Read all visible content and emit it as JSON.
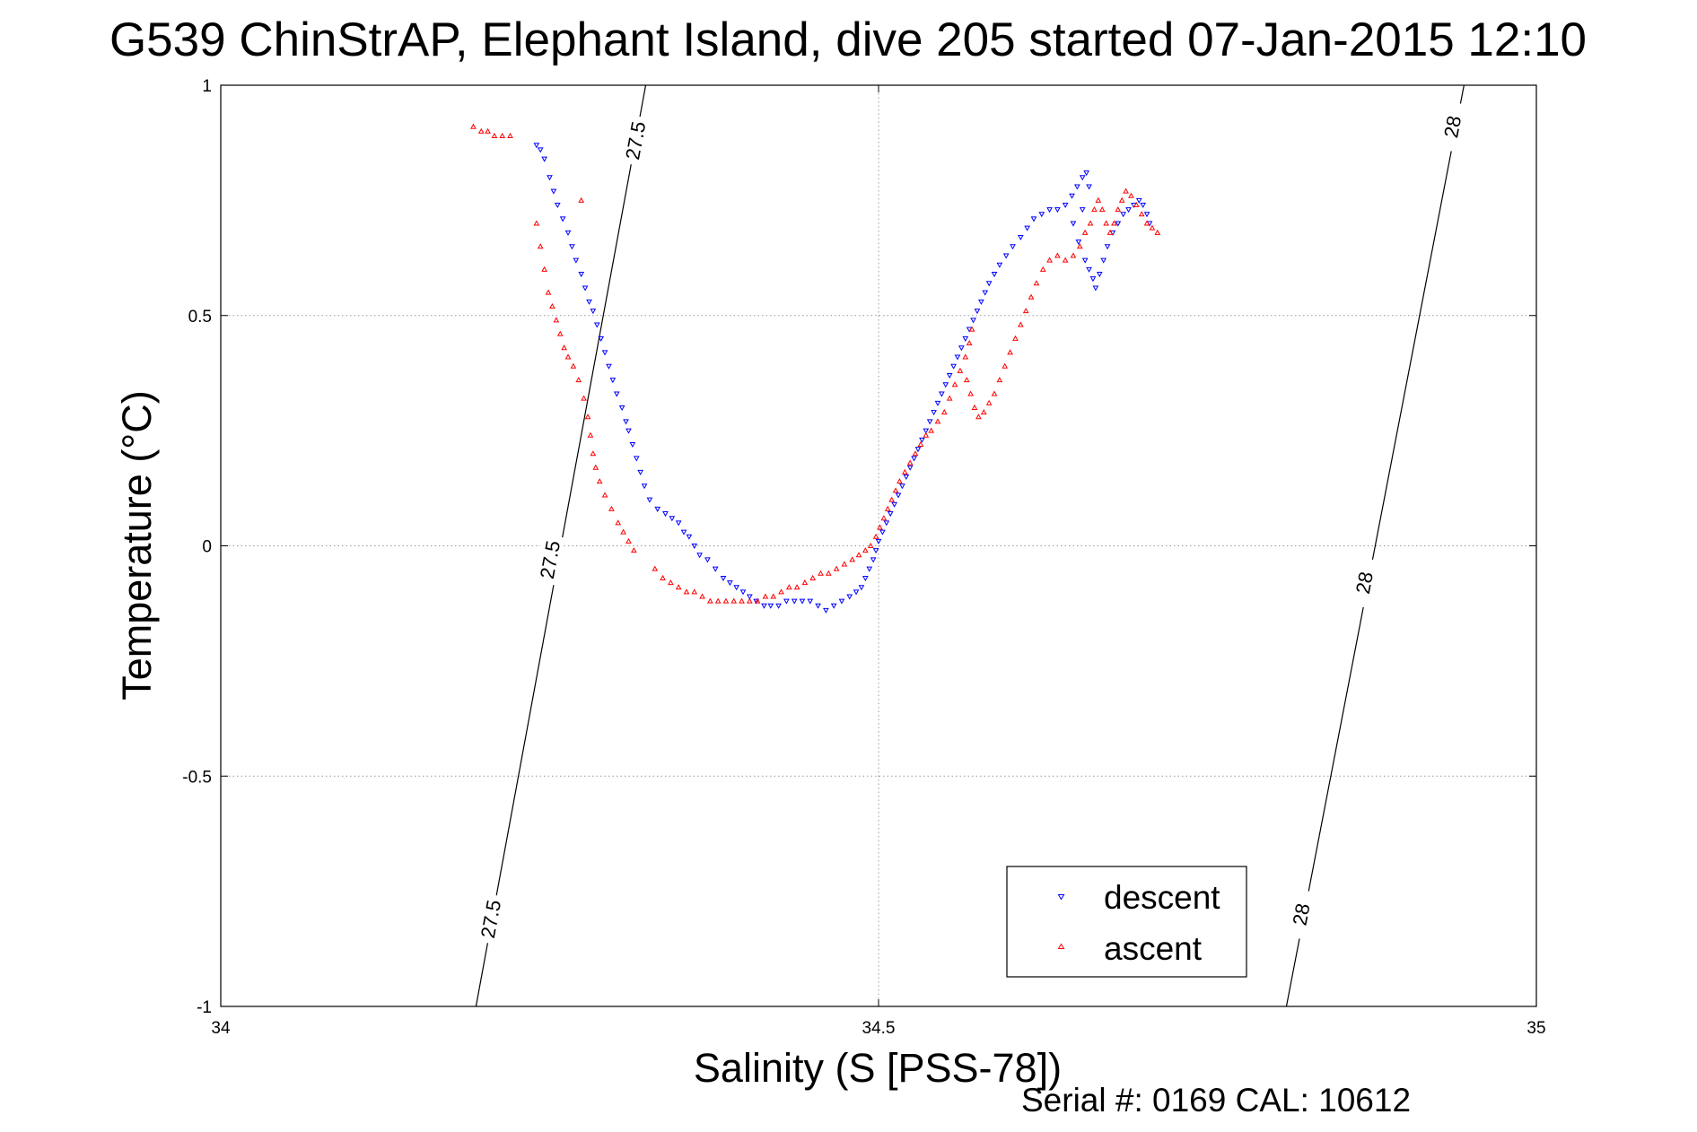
{
  "title": "G539 ChinStrAP, Elephant Island, dive 205 started 07-Jan-2015 12:10",
  "footer": "Serial #: 0169 CAL: 10612",
  "colors": {
    "descent": "#0000ff",
    "ascent": "#ff0000",
    "grid": "#999999",
    "axis": "#000000"
  },
  "chart_data": {
    "type": "scatter",
    "title": "G539 ChinStrAP, Elephant Island, dive 205 started 07-Jan-2015 12:10",
    "xlabel": "Salinity (S [PSS-78])",
    "ylabel": "Temperature (°C)",
    "xlim": [
      34,
      35
    ],
    "ylim": [
      -1,
      1
    ],
    "xticks": [
      34,
      34.5,
      35
    ],
    "xtick_labels": [
      "34",
      "34.5",
      "35"
    ],
    "yticks": [
      -1,
      -0.5,
      0,
      0.5,
      1
    ],
    "ytick_labels": [
      "-1",
      "-0.5",
      "0",
      "0.5",
      "1"
    ],
    "grid": true,
    "legend": {
      "position": "bottom-right",
      "entries": [
        "descent",
        "ascent"
      ]
    },
    "contours": [
      {
        "label": "27.5",
        "points": [
          [
            34.194,
            -1.0
          ],
          [
            34.323,
            1.0
          ]
        ],
        "label_positions": [
          [
            34.205,
            -0.81
          ],
          [
            34.25,
            -0.03
          ],
          [
            34.315,
            0.88
          ]
        ]
      },
      {
        "label": "28",
        "points": [
          [
            34.81,
            -1.0
          ],
          [
            34.945,
            1.0
          ]
        ],
        "label_positions": [
          [
            34.821,
            -0.8
          ],
          [
            34.869,
            -0.08
          ],
          [
            34.936,
            0.91
          ]
        ]
      }
    ],
    "series": [
      {
        "name": "descent",
        "marker": "triangle-down",
        "color": "#0000ff",
        "points": [
          [
            34.24,
            0.87
          ],
          [
            34.243,
            0.86
          ],
          [
            34.246,
            0.84
          ],
          [
            34.25,
            0.8
          ],
          [
            34.253,
            0.77
          ],
          [
            34.256,
            0.74
          ],
          [
            34.26,
            0.71
          ],
          [
            34.264,
            0.68
          ],
          [
            34.267,
            0.65
          ],
          [
            34.27,
            0.62
          ],
          [
            34.274,
            0.59
          ],
          [
            34.277,
            0.56
          ],
          [
            34.28,
            0.53
          ],
          [
            34.283,
            0.51
          ],
          [
            34.286,
            0.48
          ],
          [
            34.289,
            0.45
          ],
          [
            34.292,
            0.42
          ],
          [
            34.295,
            0.39
          ],
          [
            34.298,
            0.36
          ],
          [
            34.301,
            0.33
          ],
          [
            34.305,
            0.3
          ],
          [
            34.308,
            0.27
          ],
          [
            34.31,
            0.25
          ],
          [
            34.313,
            0.22
          ],
          [
            34.316,
            0.19
          ],
          [
            34.319,
            0.16
          ],
          [
            34.322,
            0.13
          ],
          [
            34.326,
            0.1
          ],
          [
            34.332,
            0.08
          ],
          [
            34.338,
            0.07
          ],
          [
            34.343,
            0.06
          ],
          [
            34.348,
            0.05
          ],
          [
            34.352,
            0.03
          ],
          [
            34.356,
            0.02
          ],
          [
            34.36,
            0.0
          ],
          [
            34.364,
            -0.02
          ],
          [
            34.37,
            -0.03
          ],
          [
            34.376,
            -0.05
          ],
          [
            34.382,
            -0.07
          ],
          [
            34.387,
            -0.08
          ],
          [
            34.392,
            -0.09
          ],
          [
            34.397,
            -0.1
          ],
          [
            34.402,
            -0.11
          ],
          [
            34.407,
            -0.12
          ],
          [
            34.413,
            -0.13
          ],
          [
            34.418,
            -0.13
          ],
          [
            34.424,
            -0.13
          ],
          [
            34.43,
            -0.12
          ],
          [
            34.436,
            -0.12
          ],
          [
            34.442,
            -0.12
          ],
          [
            34.448,
            -0.12
          ],
          [
            34.454,
            -0.13
          ],
          [
            34.46,
            -0.14
          ],
          [
            34.466,
            -0.13
          ],
          [
            34.472,
            -0.12
          ],
          [
            34.478,
            -0.11
          ],
          [
            34.483,
            -0.1
          ],
          [
            34.487,
            -0.09
          ],
          [
            34.49,
            -0.07
          ],
          [
            34.493,
            -0.05
          ],
          [
            34.496,
            -0.03
          ],
          [
            34.498,
            -0.01
          ],
          [
            34.5,
            0.01
          ],
          [
            34.503,
            0.03
          ],
          [
            34.506,
            0.05
          ],
          [
            34.509,
            0.07
          ],
          [
            34.512,
            0.09
          ],
          [
            34.515,
            0.11
          ],
          [
            34.518,
            0.13
          ],
          [
            34.521,
            0.15
          ],
          [
            34.524,
            0.17
          ],
          [
            34.527,
            0.19
          ],
          [
            34.53,
            0.21
          ],
          [
            34.533,
            0.23
          ],
          [
            34.536,
            0.25
          ],
          [
            34.539,
            0.27
          ],
          [
            34.542,
            0.29
          ],
          [
            34.545,
            0.31
          ],
          [
            34.548,
            0.33
          ],
          [
            34.551,
            0.35
          ],
          [
            34.554,
            0.37
          ],
          [
            34.557,
            0.39
          ],
          [
            34.56,
            0.41
          ],
          [
            34.563,
            0.43
          ],
          [
            34.566,
            0.45
          ],
          [
            34.569,
            0.47
          ],
          [
            34.572,
            0.49
          ],
          [
            34.575,
            0.51
          ],
          [
            34.578,
            0.53
          ],
          [
            34.581,
            0.55
          ],
          [
            34.584,
            0.57
          ],
          [
            34.588,
            0.59
          ],
          [
            34.592,
            0.61
          ],
          [
            34.597,
            0.63
          ],
          [
            34.602,
            0.65
          ],
          [
            34.608,
            0.67
          ],
          [
            34.613,
            0.69
          ],
          [
            34.618,
            0.71
          ],
          [
            34.624,
            0.72
          ],
          [
            34.63,
            0.73
          ],
          [
            34.636,
            0.73
          ],
          [
            34.642,
            0.74
          ],
          [
            34.647,
            0.76
          ],
          [
            34.651,
            0.78
          ],
          [
            34.655,
            0.8
          ],
          [
            34.658,
            0.81
          ],
          [
            34.66,
            0.78
          ],
          [
            34.655,
            0.73
          ],
          [
            34.648,
            0.7
          ],
          [
            34.652,
            0.66
          ],
          [
            34.657,
            0.62
          ],
          [
            34.66,
            0.6
          ],
          [
            34.663,
            0.58
          ],
          [
            34.665,
            0.56
          ],
          [
            34.668,
            0.59
          ],
          [
            34.671,
            0.62
          ],
          [
            34.674,
            0.65
          ],
          [
            34.678,
            0.68
          ],
          [
            34.682,
            0.7
          ],
          [
            34.686,
            0.72
          ],
          [
            34.69,
            0.73
          ],
          [
            34.694,
            0.74
          ],
          [
            34.698,
            0.75
          ],
          [
            34.701,
            0.74
          ],
          [
            34.704,
            0.72
          ],
          [
            34.706,
            0.7
          ]
        ]
      },
      {
        "name": "ascent",
        "marker": "triangle-up",
        "color": "#ff0000",
        "points": [
          [
            34.192,
            0.91
          ],
          [
            34.198,
            0.9
          ],
          [
            34.203,
            0.9
          ],
          [
            34.208,
            0.89
          ],
          [
            34.214,
            0.89
          ],
          [
            34.22,
            0.89
          ],
          [
            34.274,
            0.75
          ],
          [
            34.24,
            0.7
          ],
          [
            34.243,
            0.65
          ],
          [
            34.246,
            0.6
          ],
          [
            34.249,
            0.55
          ],
          [
            34.252,
            0.52
          ],
          [
            34.255,
            0.49
          ],
          [
            34.258,
            0.46
          ],
          [
            34.261,
            0.43
          ],
          [
            34.264,
            0.41
          ],
          [
            34.268,
            0.39
          ],
          [
            34.272,
            0.36
          ],
          [
            34.276,
            0.32
          ],
          [
            34.279,
            0.28
          ],
          [
            34.281,
            0.24
          ],
          [
            34.283,
            0.2
          ],
          [
            34.285,
            0.17
          ],
          [
            34.288,
            0.14
          ],
          [
            34.292,
            0.11
          ],
          [
            34.297,
            0.08
          ],
          [
            34.302,
            0.05
          ],
          [
            34.306,
            0.03
          ],
          [
            34.31,
            0.01
          ],
          [
            34.314,
            -0.01
          ],
          [
            34.33,
            -0.05
          ],
          [
            34.336,
            -0.07
          ],
          [
            34.342,
            -0.08
          ],
          [
            34.348,
            -0.09
          ],
          [
            34.354,
            -0.1
          ],
          [
            34.36,
            -0.1
          ],
          [
            34.366,
            -0.11
          ],
          [
            34.372,
            -0.12
          ],
          [
            34.378,
            -0.12
          ],
          [
            34.384,
            -0.12
          ],
          [
            34.39,
            -0.12
          ],
          [
            34.396,
            -0.12
          ],
          [
            34.402,
            -0.12
          ],
          [
            34.408,
            -0.12
          ],
          [
            34.414,
            -0.11
          ],
          [
            34.42,
            -0.11
          ],
          [
            34.426,
            -0.1
          ],
          [
            34.432,
            -0.09
          ],
          [
            34.438,
            -0.09
          ],
          [
            34.444,
            -0.08
          ],
          [
            34.45,
            -0.07
          ],
          [
            34.456,
            -0.06
          ],
          [
            34.462,
            -0.06
          ],
          [
            34.468,
            -0.05
          ],
          [
            34.474,
            -0.04
          ],
          [
            34.48,
            -0.03
          ],
          [
            34.485,
            -0.02
          ],
          [
            34.49,
            -0.01
          ],
          [
            34.494,
            0.0
          ],
          [
            34.498,
            0.02
          ],
          [
            34.501,
            0.04
          ],
          [
            34.504,
            0.06
          ],
          [
            34.507,
            0.08
          ],
          [
            34.51,
            0.1
          ],
          [
            34.513,
            0.12
          ],
          [
            34.516,
            0.14
          ],
          [
            34.52,
            0.16
          ],
          [
            34.524,
            0.18
          ],
          [
            34.528,
            0.2
          ],
          [
            34.532,
            0.22
          ],
          [
            34.536,
            0.24
          ],
          [
            34.54,
            0.25
          ],
          [
            34.545,
            0.27
          ],
          [
            34.55,
            0.29
          ],
          [
            34.554,
            0.32
          ],
          [
            34.558,
            0.35
          ],
          [
            34.562,
            0.38
          ],
          [
            34.566,
            0.41
          ],
          [
            34.569,
            0.44
          ],
          [
            34.571,
            0.47
          ],
          [
            34.567,
            0.36
          ],
          [
            34.57,
            0.33
          ],
          [
            34.573,
            0.3
          ],
          [
            34.576,
            0.28
          ],
          [
            34.58,
            0.29
          ],
          [
            34.584,
            0.31
          ],
          [
            34.588,
            0.33
          ],
          [
            34.592,
            0.36
          ],
          [
            34.596,
            0.39
          ],
          [
            34.6,
            0.42
          ],
          [
            34.604,
            0.45
          ],
          [
            34.608,
            0.48
          ],
          [
            34.612,
            0.51
          ],
          [
            34.616,
            0.54
          ],
          [
            34.62,
            0.57
          ],
          [
            34.625,
            0.6
          ],
          [
            34.63,
            0.62
          ],
          [
            34.636,
            0.63
          ],
          [
            34.642,
            0.62
          ],
          [
            34.648,
            0.63
          ],
          [
            34.653,
            0.65
          ],
          [
            34.657,
            0.68
          ],
          [
            34.661,
            0.7
          ],
          [
            34.664,
            0.73
          ],
          [
            34.667,
            0.75
          ],
          [
            34.67,
            0.73
          ],
          [
            34.673,
            0.7
          ],
          [
            34.676,
            0.68
          ],
          [
            34.679,
            0.7
          ],
          [
            34.682,
            0.73
          ],
          [
            34.685,
            0.75
          ],
          [
            34.688,
            0.77
          ],
          [
            34.692,
            0.76
          ],
          [
            34.696,
            0.74
          ],
          [
            34.7,
            0.72
          ],
          [
            34.704,
            0.7
          ],
          [
            34.708,
            0.69
          ],
          [
            34.712,
            0.68
          ]
        ]
      }
    ]
  }
}
